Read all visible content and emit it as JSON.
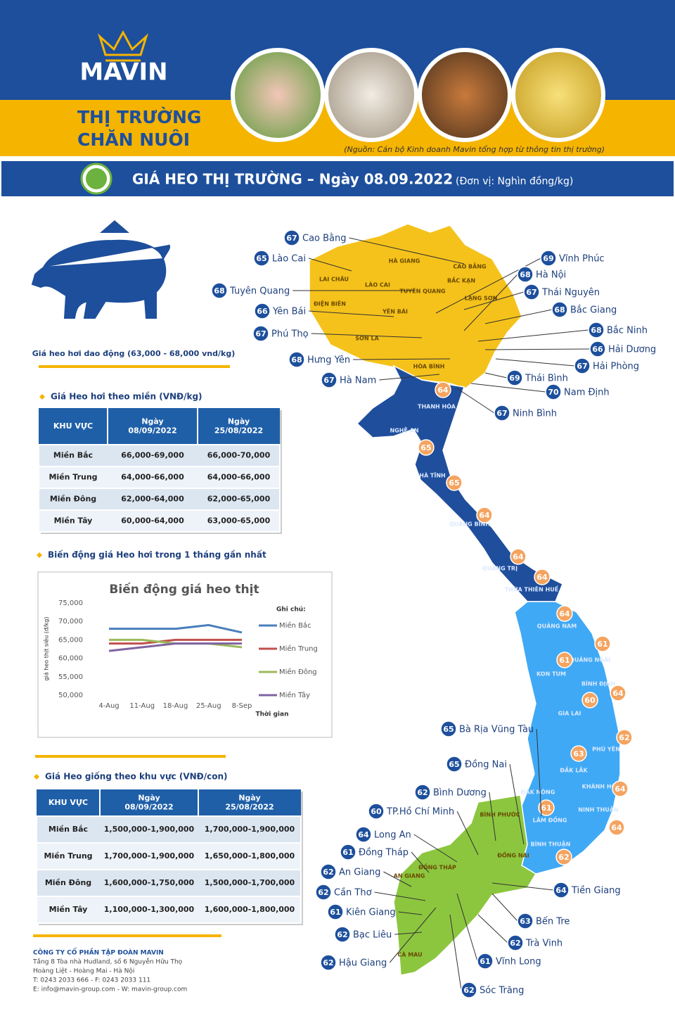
{
  "header": {
    "logo": "MAVIN",
    "title_line1": "THỊ TRƯỜNG",
    "title_line2": "CHĂN NUÔI",
    "source": "(Nguồn: Cán bộ Kinh doanh Mavin tổng hợp từ thông tin thị trường)"
  },
  "banner": {
    "title": "GIÁ HEO THỊ TRƯỜNG – Ngày 08.09.2022",
    "unit": "(Đơn vị: Nghìn đồng/kg)"
  },
  "summary": "Giá heo hơi dao động (63,000 - 68,000 vnd/kg)",
  "live_price_table": {
    "heading": "Giá Heo hơi theo miền (VNĐ/kg)",
    "columns": [
      [
        "KHU VỰC"
      ],
      [
        "Ngày",
        "08/09/2022"
      ],
      [
        "Ngày",
        "25/08/2022"
      ]
    ],
    "rows": [
      [
        "Miền Bắc",
        "66,000-69,000",
        "66,000-70,000"
      ],
      [
        "Miền Trung",
        "64,000-66,000",
        "64,000-66,000"
      ],
      [
        "Miền Đông",
        "62,000-64,000",
        "62,000-65,000"
      ],
      [
        "Miền Tây",
        "60,000-64,000",
        "63,000-65,000"
      ]
    ]
  },
  "chart_heading": "Biến động giá Heo hơi trong 1 tháng gần nhất",
  "chart_data": {
    "type": "line",
    "title": "Biến động giá heo thịt",
    "y_label": "giá heo thịt siêu (đ/kg)",
    "x_label": "Thời gian",
    "legend_title": "Ghi chú:",
    "categories": [
      "4-Aug",
      "11-Aug",
      "18-Aug",
      "25-Aug",
      "8-Sep"
    ],
    "series": [
      {
        "name": "Miền Bắc",
        "color": "#4a7ebb",
        "values": [
          68000,
          68000,
          68000,
          69000,
          67000
        ]
      },
      {
        "name": "Miền Trung",
        "color": "#c0504d",
        "values": [
          64000,
          64000,
          65000,
          65000,
          65000
        ]
      },
      {
        "name": "Miền Đông",
        "color": "#9bbb59",
        "values": [
          65000,
          65000,
          64000,
          64000,
          63000
        ]
      },
      {
        "name": "Miền Tây",
        "color": "#8064a2",
        "values": [
          62000,
          63000,
          64000,
          64000,
          64000
        ]
      }
    ],
    "ylim": [
      50000,
      75000
    ],
    "yticks": [
      {
        "value": 50000,
        "label": "50,000"
      },
      {
        "value": 55000,
        "label": "55,000"
      },
      {
        "value": 60000,
        "label": "60,000"
      },
      {
        "value": 65000,
        "label": "65,000"
      },
      {
        "value": 70000,
        "label": "70,000"
      },
      {
        "value": 75000,
        "label": "75,000"
      }
    ],
    "grid": false
  },
  "breed_price_table": {
    "heading": "Giá Heo giống theo khu vực (VNĐ/con)",
    "columns": [
      [
        "KHU VỰC"
      ],
      [
        "Ngày",
        "08/09/2022"
      ],
      [
        "Ngày",
        "25/08/2022"
      ]
    ],
    "rows": [
      [
        "Miền Bắc",
        "1,500,000-1,900,000",
        "1,700,000-1,900,000"
      ],
      [
        "Miền Trung",
        "1,700,000-1,900,000",
        "1,650,000-1,800,000"
      ],
      [
        "Miền Đông",
        "1,600,000-1,750,000",
        "1,500,000-1,700,000"
      ],
      [
        "Miền Tây",
        "1,100,000-1,300,000",
        "1,600,000-1,800,000"
      ]
    ]
  },
  "company": [
    "CÔNG TY CỔ PHẦN TẬP ĐOÀN MAVIN",
    "Tầng 8 Tòa nhà Hudland, số 6 Nguyễn Hữu Thọ",
    "Hoàng Liệt - Hoàng Mai - Hà Nội",
    "T: 0243 2033 666 - F: 0243 2033 111",
    "E: info@mavin-group.com -  W: mavin-group.com"
  ],
  "map": {
    "callouts": [
      {
        "value": 67,
        "name": "Cao Bằng"
      },
      {
        "value": 65,
        "name": "Lào Cai"
      },
      {
        "value": 68,
        "name": "Tuyên Quang"
      },
      {
        "value": 66,
        "name": "Yên Bái"
      },
      {
        "value": 67,
        "name": "Phú Thọ"
      },
      {
        "value": 68,
        "name": "Hưng Yên"
      },
      {
        "value": 67,
        "name": "Hà Nam"
      },
      {
        "value": 69,
        "name": "Vĩnh Phúc"
      },
      {
        "value": 68,
        "name": "Hà Nội"
      },
      {
        "value": 67,
        "name": "Thái Nguyên"
      },
      {
        "value": 68,
        "name": "Bắc Giang"
      },
      {
        "value": 68,
        "name": "Bắc Ninh"
      },
      {
        "value": 66,
        "name": "Hải Dương"
      },
      {
        "value": 67,
        "name": "Hải Phòng"
      },
      {
        "value": 69,
        "name": "Thái Bình"
      },
      {
        "value": 70,
        "name": "Nam Định"
      },
      {
        "value": 67,
        "name": "Ninh Bình"
      },
      {
        "value": 65,
        "name": "Bà Rịa Vũng Tàu"
      },
      {
        "value": 65,
        "name": "Đồng Nai"
      },
      {
        "value": 62,
        "name": "Bình Dương"
      },
      {
        "value": 60,
        "name": "TP.Hồ Chí Minh"
      },
      {
        "value": 64,
        "name": "Long An"
      },
      {
        "value": 61,
        "name": "Đồng Tháp"
      },
      {
        "value": 62,
        "name": "An Giang"
      },
      {
        "value": 62,
        "name": "Cần Thơ"
      },
      {
        "value": 61,
        "name": "Kiên Giang"
      },
      {
        "value": 62,
        "name": "Bạc Liêu"
      },
      {
        "value": 62,
        "name": "Hậu Giang"
      },
      {
        "value": 64,
        "name": "Tiền Giang"
      },
      {
        "value": 63,
        "name": "Bến Tre"
      },
      {
        "value": 62,
        "name": "Trà Vinh"
      },
      {
        "value": 61,
        "name": "Vĩnh Long"
      },
      {
        "value": 62,
        "name": "Sóc Trăng"
      }
    ],
    "badges": [
      64,
      65,
      65,
      64,
      64,
      64,
      64,
      61,
      61,
      64,
      60,
      62,
      63,
      64,
      61,
      64,
      62
    ],
    "region_labels": [
      "LAI CHÂU",
      "LÀO CAI",
      "HÀ GIANG",
      "TUYÊN QUANG",
      "CAO BẰNG",
      "BẮC KẠN",
      "LẠNG SƠN",
      "ĐIỆN BIÊN",
      "YÊN BÁI",
      "SƠN LA",
      "HÒA BÌNH",
      "THANH HÓA",
      "NGHỆ AN",
      "HÀ TĨNH",
      "QUẢNG BÌNH",
      "QUẢNG TRỊ",
      "THỪA THIÊN HUẾ",
      "QUẢNG NAM",
      "QUẢNG NGÃI",
      "KON TUM",
      "BÌNH ĐỊNH",
      "GIA LAI",
      "PHÚ YÊN",
      "ĐẮK LẮK",
      "KHÁNH HÒA",
      "ĐẮK NÔNG",
      "LÂM ĐỒNG",
      "NINH THUẬN",
      "BÌNH THUẬN",
      "BÌNH PHƯỚC",
      "ĐỒNG NAI",
      "AN GIANG",
      "ĐỒNG THÁP",
      "CÀ MAU"
    ]
  }
}
